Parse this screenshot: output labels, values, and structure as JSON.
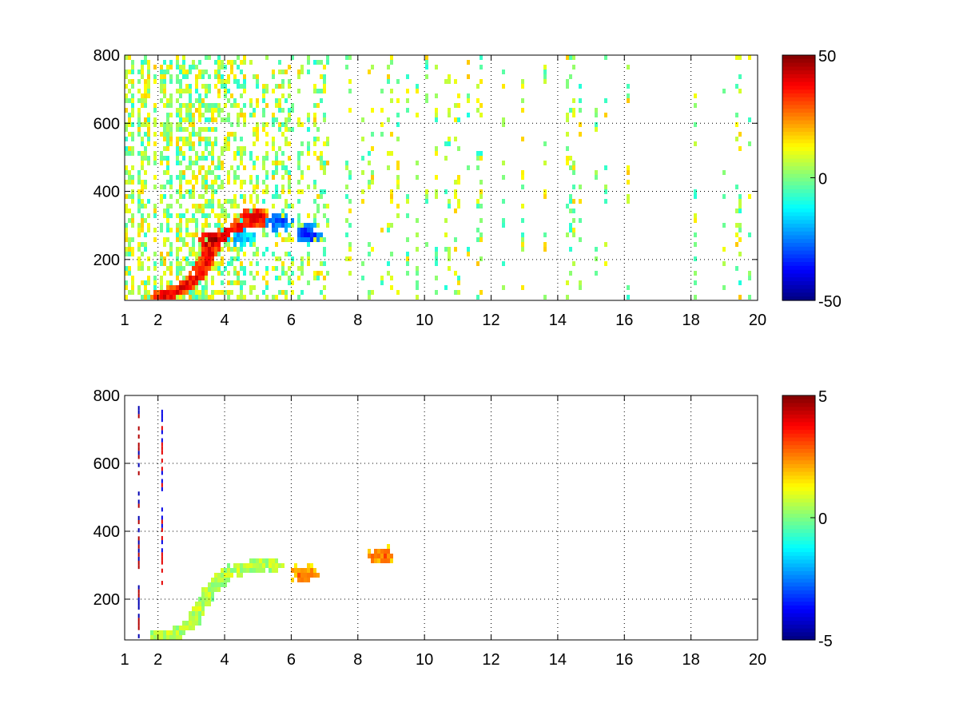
{
  "chart_data": [
    {
      "type": "heatmap",
      "title": "",
      "xlabel": "",
      "ylabel": "",
      "xlim": [
        1,
        20
      ],
      "ylim": [
        80,
        800
      ],
      "x_ticks": [
        1,
        2,
        4,
        6,
        8,
        10,
        12,
        14,
        16,
        18,
        20
      ],
      "y_ticks": [
        200,
        400,
        600,
        800
      ],
      "grid": true,
      "colormap": "jet",
      "colorbar": {
        "min": -50,
        "max": 50,
        "ticks": [
          50,
          0,
          -50
        ]
      },
      "features": [
        {
          "name": "ridge",
          "points": [
            [
              2.0,
              85
            ],
            [
              2.5,
              100
            ],
            [
              3.0,
              130
            ],
            [
              3.3,
              170
            ],
            [
              3.6,
              230
            ],
            [
              3.9,
              270
            ],
            [
              4.3,
              290
            ],
            [
              4.8,
              310
            ]
          ],
          "value": 35
        },
        {
          "name": "blob",
          "x": 3.7,
          "y": 255,
          "value": 48
        },
        {
          "name": "blob",
          "x": 4.9,
          "y": 320,
          "value": 38
        },
        {
          "name": "blob",
          "x": 4.5,
          "y": 265,
          "value": -18
        },
        {
          "name": "blob",
          "x": 5.6,
          "y": 310,
          "value": -28
        },
        {
          "name": "blob",
          "x": 6.5,
          "y": 275,
          "value": -32
        }
      ]
    },
    {
      "type": "heatmap",
      "title": "",
      "xlabel": "",
      "ylabel": "",
      "xlim": [
        1,
        20
      ],
      "ylim": [
        80,
        800
      ],
      "x_ticks": [
        1,
        2,
        4,
        6,
        8,
        10,
        12,
        14,
        16,
        18,
        20
      ],
      "y_ticks": [
        200,
        400,
        600,
        800
      ],
      "grid": true,
      "colormap": "jet",
      "colorbar": {
        "min": -5,
        "max": 5,
        "ticks": [
          5,
          0,
          -5
        ]
      },
      "features": [
        {
          "name": "ridge",
          "points": [
            [
              2.0,
              88
            ],
            [
              2.5,
              95
            ],
            [
              3.0,
              130
            ],
            [
              3.4,
              200
            ],
            [
              3.8,
              250
            ],
            [
              4.2,
              280
            ],
            [
              4.8,
              300
            ],
            [
              5.5,
              300
            ]
          ],
          "value": 0.5
        },
        {
          "name": "blob",
          "x": 6.4,
          "y": 275,
          "value": 2.5
        },
        {
          "name": "blob",
          "x": 8.7,
          "y": 330,
          "value": 2.5
        },
        {
          "name": "streak",
          "x": 1.4,
          "y_from": 85,
          "y_to": 775,
          "value": 4.5
        },
        {
          "name": "streak",
          "x": 2.1,
          "y_from": 230,
          "y_to": 780,
          "value": -4
        }
      ]
    }
  ]
}
